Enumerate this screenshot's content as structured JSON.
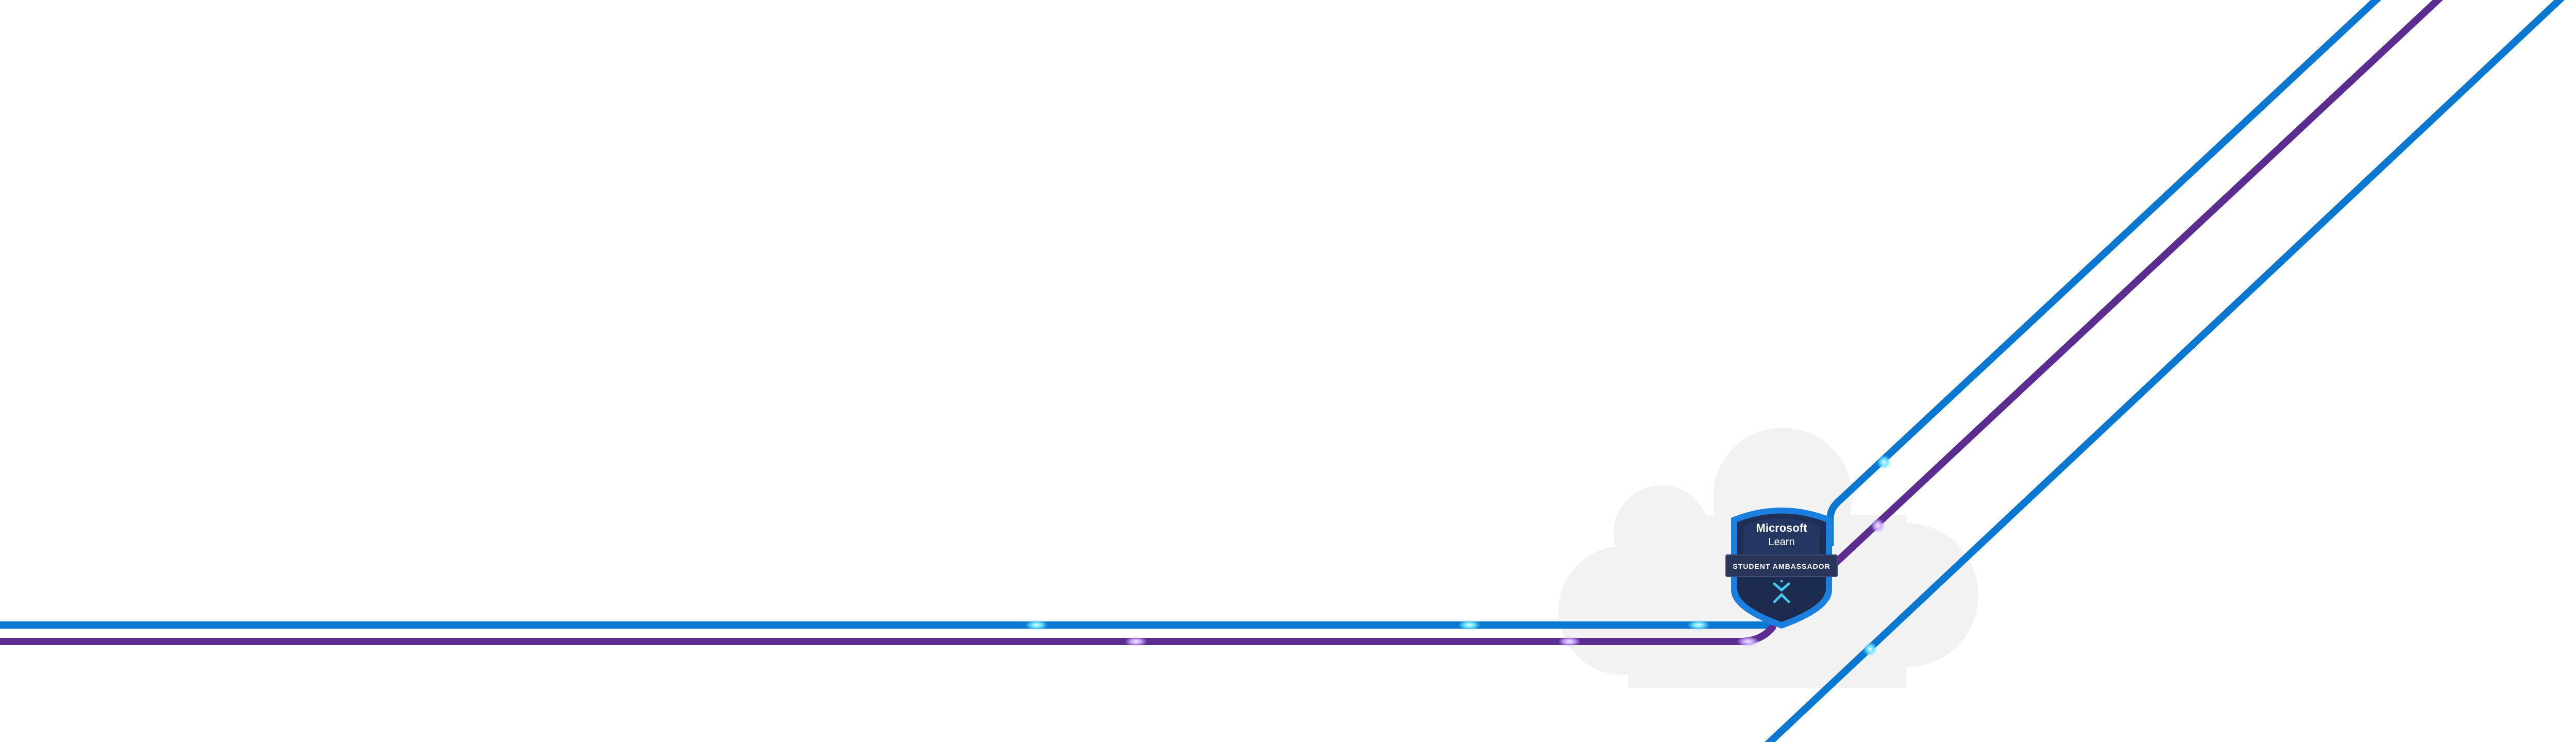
{
  "colors": {
    "background": "#ffffff",
    "cloud": "#f2f2f2",
    "line_blue": "#0a78d0",
    "line_purple": "#5b2d91",
    "glow_cyan": "#6ee7ff",
    "glow_purple": "#c9a7ff",
    "badge_dark": "#1f2f55",
    "badge_mid": "#243763",
    "badge_border": "#1b7fe0",
    "badge_ribbon": "#2a355a",
    "badge_mark": "#44c7f0"
  },
  "icons": {
    "cloud": "cloud-icon",
    "badge": "shield-badge-icon",
    "mark": "ambassador-mark-icon"
  },
  "badge": {
    "title": "Microsoft",
    "subtitle": "Learn",
    "ribbon": "STUDENT AMBASSADOR"
  }
}
